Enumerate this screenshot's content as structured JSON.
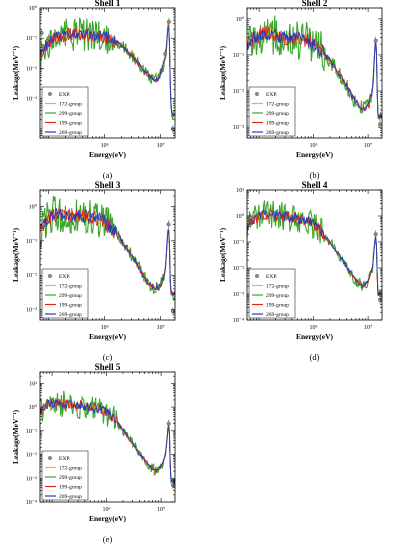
{
  "legend_items": [
    {
      "label": "EXP.",
      "color": "#7f7f7f",
      "marker": "circle"
    },
    {
      "label": "172-group",
      "color": "#f2b134"
    },
    {
      "label": "299-group",
      "color": "#3aa62b"
    },
    {
      "label": "199-group",
      "color": "#e3261b"
    },
    {
      "label": "269-group",
      "color": "#1f3fbf"
    }
  ],
  "chart_data": [
    {
      "type": "line",
      "title": "Shell 1",
      "panel_label": "(a)",
      "xlabel": "Energy(eV)",
      "ylabel": "Leakage(MeV⁻¹)",
      "x_scale": "log",
      "y_scale": "log",
      "xlim": [
        70000,
        18000000
      ],
      "ylim": [
        5e-05,
        1
      ],
      "x_ticks": [
        {
          "value": 1000000,
          "label": "10⁶"
        },
        {
          "value": 10000000,
          "label": "10⁷"
        }
      ],
      "y_ticks": [
        {
          "value": 0.001,
          "label": "10⁻³"
        },
        {
          "value": 0.01,
          "label": "10⁻²"
        },
        {
          "value": 0.1,
          "label": "10⁻¹"
        },
        {
          "value": 1,
          "label": "10⁰"
        }
      ],
      "legend_position": "lower-left",
      "series_shape": [
        [
          70000,
          0.03
        ],
        [
          90000,
          0.06
        ],
        [
          110000,
          0.09
        ],
        [
          150000,
          0.12
        ],
        [
          250000,
          0.13
        ],
        [
          400000,
          0.14
        ],
        [
          700000,
          0.12
        ],
        [
          1200000,
          0.1
        ],
        [
          2000000,
          0.06
        ],
        [
          3500000,
          0.02
        ],
        [
          5500000,
          0.007
        ],
        [
          8000000,
          0.004
        ],
        [
          9500000,
          0.005
        ],
        [
          11000000,
          0.012
        ],
        [
          12500000,
          0.04
        ],
        [
          13600000,
          0.35
        ],
        [
          14200000,
          0.2
        ],
        [
          14800000,
          0.003
        ],
        [
          15500000,
          0.0003
        ]
      ],
      "exp_points": [
        [
          75000,
          0.15
        ],
        [
          100000,
          0.1
        ],
        [
          12000000,
          0.03
        ],
        [
          14000000,
          0.35
        ],
        [
          16500000,
          0.0001
        ]
      ]
    },
    {
      "type": "line",
      "title": "Shell 2",
      "panel_label": "(b)",
      "xlabel": "Energy(eV)",
      "ylabel": "Leakage(MeV⁻¹)",
      "x_scale": "log",
      "y_scale": "log",
      "xlim": [
        60000,
        18000000
      ],
      "ylim": [
        0.0005,
        2
      ],
      "x_ticks": [
        {
          "value": 1000000,
          "label": "10⁶"
        },
        {
          "value": 10000000,
          "label": "10⁷"
        }
      ],
      "y_ticks": [
        {
          "value": 0.001,
          "label": "10⁻³"
        },
        {
          "value": 0.01,
          "label": "10⁻²"
        },
        {
          "value": 0.1,
          "label": "10⁻¹"
        },
        {
          "value": 1,
          "label": "10⁰"
        }
      ],
      "legend_position": "lower-left",
      "series_shape": [
        [
          60000,
          0.2
        ],
        [
          80000,
          0.3
        ],
        [
          120000,
          0.4
        ],
        [
          200000,
          0.35
        ],
        [
          400000,
          0.3
        ],
        [
          800000,
          0.25
        ],
        [
          1500000,
          0.12
        ],
        [
          3000000,
          0.03
        ],
        [
          5500000,
          0.006
        ],
        [
          8000000,
          0.003
        ],
        [
          10000000,
          0.004
        ],
        [
          12000000,
          0.01
        ],
        [
          13600000,
          0.3
        ],
        [
          14200000,
          0.15
        ],
        [
          15000000,
          0.002
        ]
      ],
      "exp_points": [
        [
          70000,
          0.3
        ],
        [
          13800000,
          0.25
        ],
        [
          16500000,
          0.0012
        ]
      ]
    },
    {
      "type": "line",
      "title": "Shell 3",
      "panel_label": "(c)",
      "xlabel": "Energy(eV)",
      "ylabel": "Leakage(MeV⁻¹)",
      "x_scale": "log",
      "y_scale": "log",
      "xlim": [
        70000,
        18000000
      ],
      "ylim": [
        0.0005,
        3
      ],
      "x_ticks": [
        {
          "value": 1000000,
          "label": "10⁶"
        },
        {
          "value": 10000000,
          "label": "10⁷"
        }
      ],
      "y_ticks": [
        {
          "value": 0.001,
          "label": "10⁻³"
        },
        {
          "value": 0.01,
          "label": "10⁻²"
        },
        {
          "value": 0.1,
          "label": "10⁻¹"
        },
        {
          "value": 1,
          "label": "10⁰"
        }
      ],
      "legend_position": "lower-left",
      "series_shape": [
        [
          70000,
          0.2
        ],
        [
          90000,
          0.4
        ],
        [
          130000,
          0.6
        ],
        [
          250000,
          0.55
        ],
        [
          500000,
          0.5
        ],
        [
          900000,
          0.4
        ],
        [
          1500000,
          0.2
        ],
        [
          3000000,
          0.04
        ],
        [
          5500000,
          0.007
        ],
        [
          8000000,
          0.004
        ],
        [
          10000000,
          0.005
        ],
        [
          12000000,
          0.012
        ],
        [
          13600000,
          0.3
        ],
        [
          14200000,
          0.15
        ],
        [
          15000000,
          0.003
        ]
      ],
      "exp_points": [
        [
          80000,
          0.3
        ],
        [
          13800000,
          0.3
        ],
        [
          16500000,
          0.0009
        ]
      ]
    },
    {
      "type": "line",
      "title": "Shell 4",
      "panel_label": "(d)",
      "xlabel": "Energy(eV)",
      "ylabel": "Leakage(MeV⁻¹)",
      "x_scale": "log",
      "y_scale": "log",
      "xlim": [
        60000,
        18000000
      ],
      "ylim": [
        0.0001,
        10
      ],
      "x_ticks": [
        {
          "value": 1000000,
          "label": "10⁶"
        },
        {
          "value": 10000000,
          "label": "10⁷"
        }
      ],
      "y_ticks": [
        {
          "value": 0.0001,
          "label": "10⁻⁴"
        },
        {
          "value": 0.001,
          "label": "10⁻³"
        },
        {
          "value": 0.01,
          "label": "10⁻²"
        },
        {
          "value": 0.1,
          "label": "10⁻¹"
        },
        {
          "value": 1,
          "label": "10⁰"
        },
        {
          "value": 10,
          "label": "10¹"
        }
      ],
      "legend_position": "lower-left",
      "series_shape": [
        [
          60000,
          0.4
        ],
        [
          80000,
          0.8
        ],
        [
          120000,
          1.2
        ],
        [
          250000,
          1
        ],
        [
          500000,
          0.8
        ],
        [
          900000,
          0.6
        ],
        [
          1500000,
          0.2
        ],
        [
          3000000,
          0.03
        ],
        [
          5500000,
          0.004
        ],
        [
          8000000,
          0.002
        ],
        [
          10000000,
          0.003
        ],
        [
          12000000,
          0.01
        ],
        [
          13600000,
          0.2
        ],
        [
          14200000,
          0.1
        ],
        [
          15000000,
          0.001
        ]
      ],
      "exp_points": [
        [
          70000,
          0.9
        ],
        [
          13800000,
          0.2
        ],
        [
          16500000,
          0.0006
        ]
      ]
    },
    {
      "type": "line",
      "title": "Shell 5",
      "panel_label": "(e)",
      "xlabel": "Energy(eV)",
      "ylabel": "Leakage(MeV⁻¹)",
      "x_scale": "log",
      "y_scale": "log",
      "xlim": [
        60000,
        18000000
      ],
      "ylim": [
        0.0001,
        30
      ],
      "x_ticks": [
        {
          "value": 1000000,
          "label": "10⁶"
        },
        {
          "value": 10000000,
          "label": "10⁷"
        }
      ],
      "y_ticks": [
        {
          "value": 0.0001,
          "label": "10⁻⁴"
        },
        {
          "value": 0.001,
          "label": "10⁻³"
        },
        {
          "value": 0.01,
          "label": "10⁻²"
        },
        {
          "value": 0.1,
          "label": "10⁻¹"
        },
        {
          "value": 1,
          "label": "10⁰"
        },
        {
          "value": 10,
          "label": "10¹"
        }
      ],
      "legend_position": "lower-left",
      "series_shape": [
        [
          60000,
          0.6
        ],
        [
          80000,
          1.2
        ],
        [
          120000,
          1.5
        ],
        [
          250000,
          1.2
        ],
        [
          500000,
          1
        ],
        [
          900000,
          0.7
        ],
        [
          1500000,
          0.25
        ],
        [
          3000000,
          0.03
        ],
        [
          5500000,
          0.004
        ],
        [
          8000000,
          0.002
        ],
        [
          10000000,
          0.003
        ],
        [
          12000000,
          0.01
        ],
        [
          13600000,
          0.2
        ],
        [
          14200000,
          0.1
        ],
        [
          15000000,
          0.0008
        ]
      ],
      "exp_points": [
        [
          70000,
          1
        ],
        [
          13800000,
          0.2
        ],
        [
          16500000,
          0.0005
        ]
      ]
    }
  ]
}
